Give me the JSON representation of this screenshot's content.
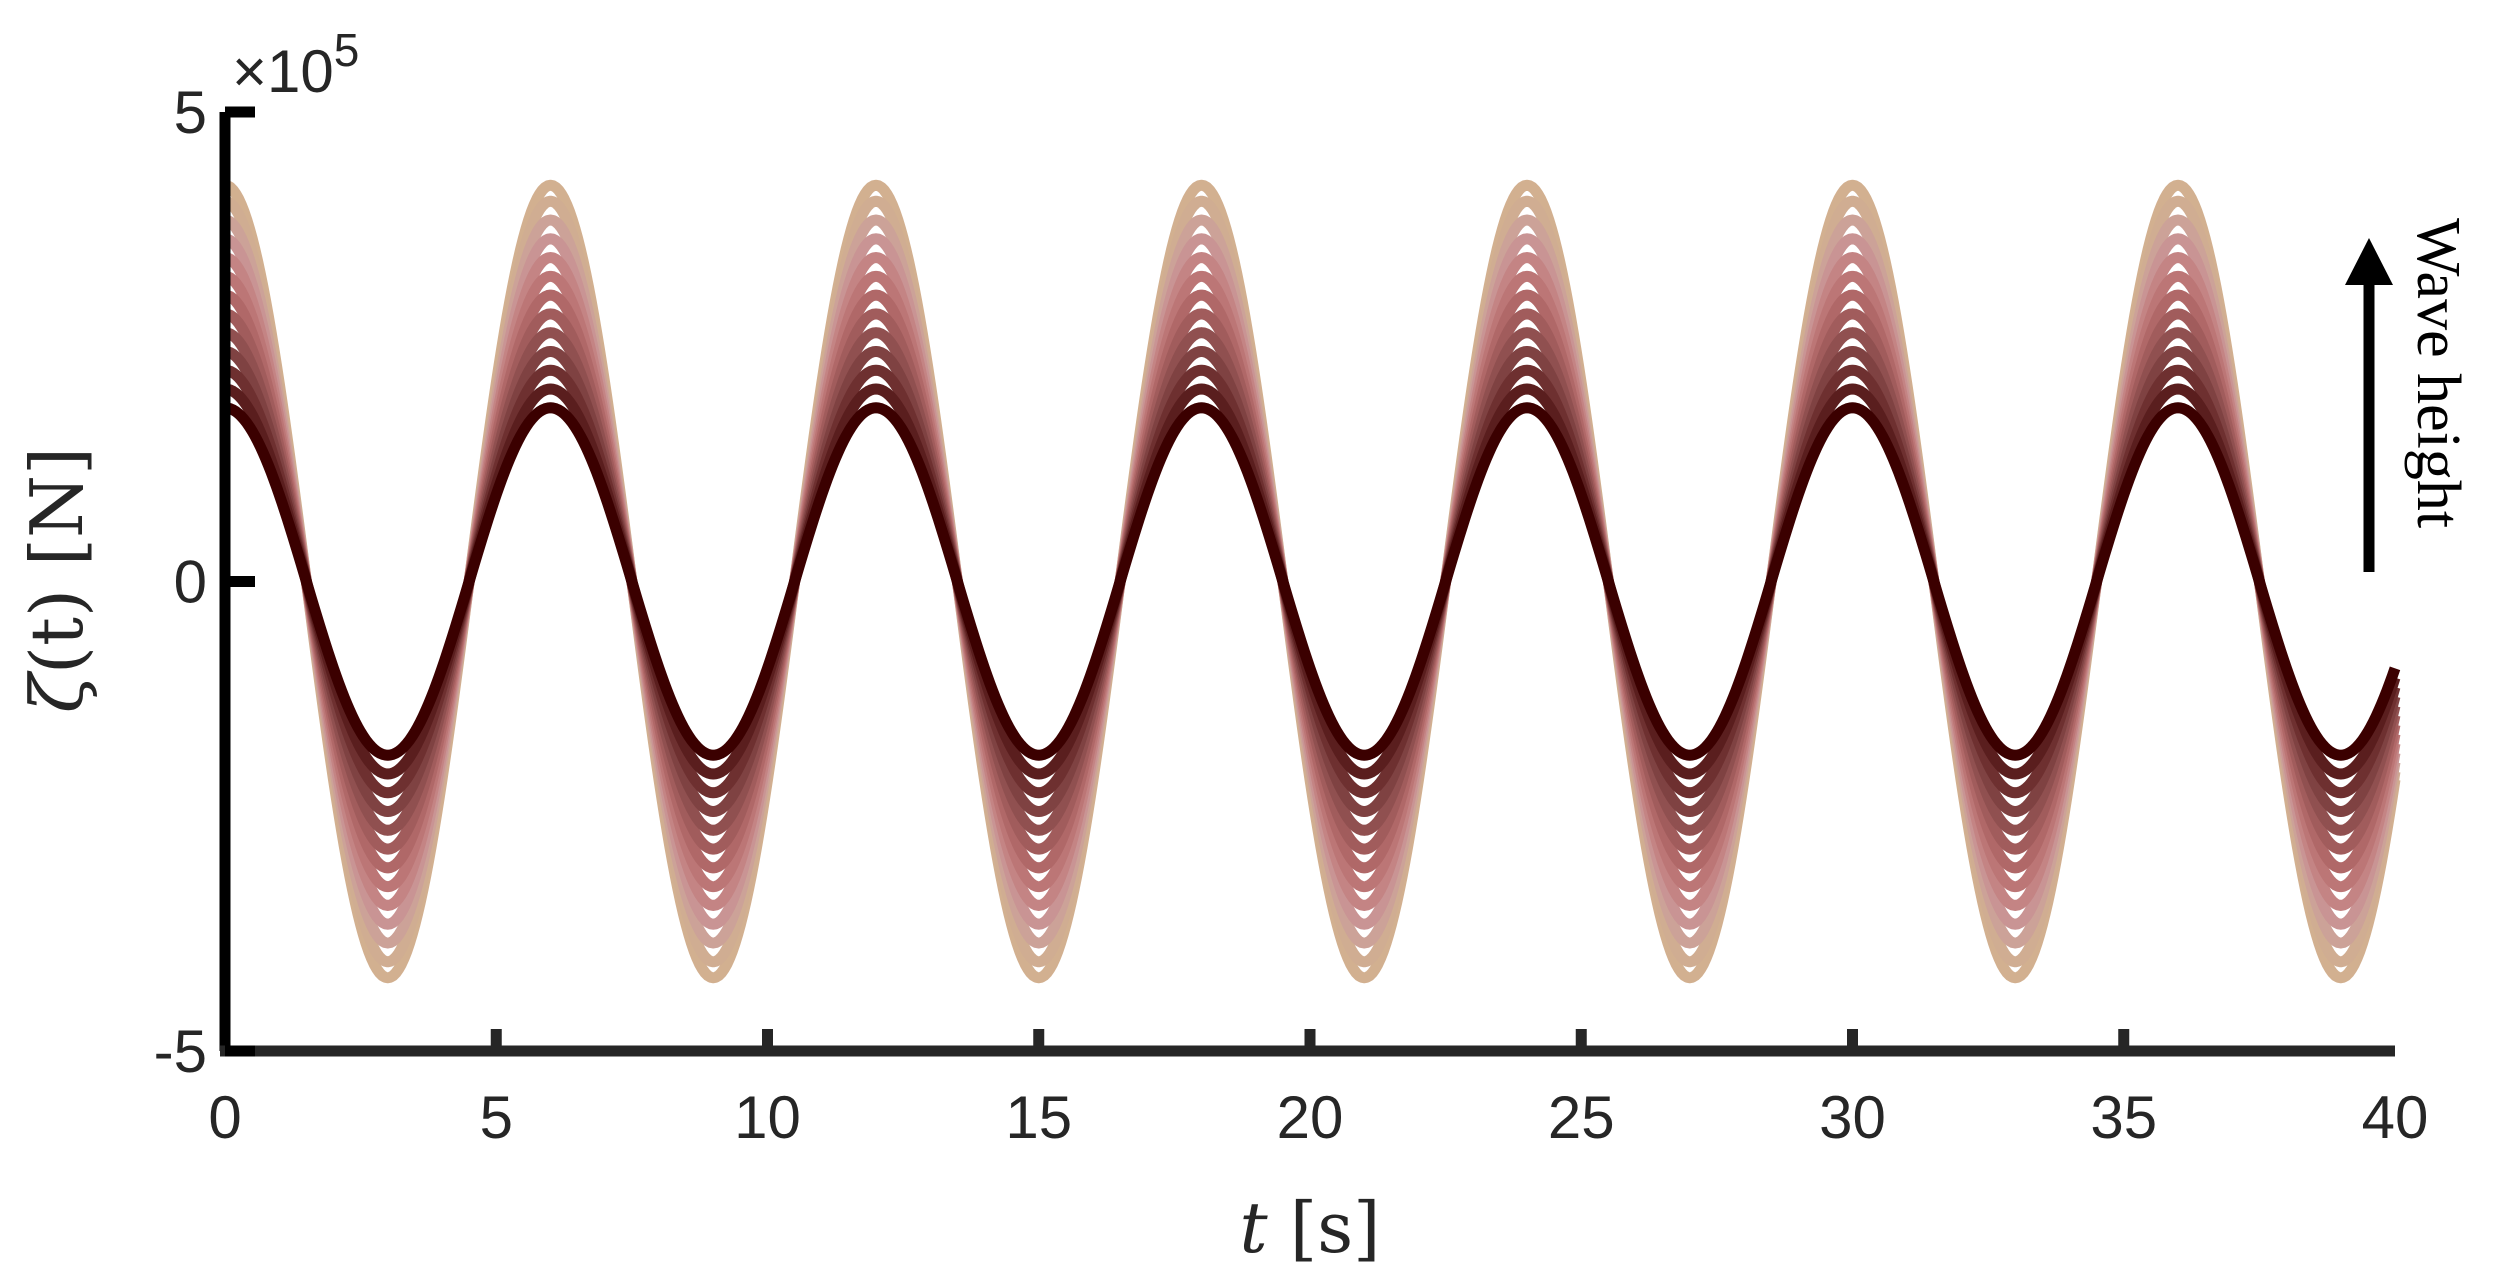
{
  "chart_data": {
    "type": "line",
    "xlabel": {
      "var": "t",
      "unit": "[s]"
    },
    "ylabel": {
      "var": "ζ",
      "arg": "(t)",
      "unit": "[N]"
    },
    "y_exponent": {
      "base": "×10",
      "power": "5"
    },
    "xlim": [
      0,
      40
    ],
    "ylim": [
      -5,
      5
    ],
    "y_scale_factor": 100000,
    "x_ticks": [
      "0",
      "5",
      "10",
      "15",
      "20",
      "25",
      "30",
      "35",
      "40"
    ],
    "y_ticks": [
      "-5",
      "0",
      "5"
    ],
    "grid": false,
    "legend": "none",
    "annotation": "Wave height",
    "period_s": 6,
    "waveform": "cosine",
    "series": [
      {
        "amplitude": 1.85,
        "color": "#3b0000"
      },
      {
        "amplitude": 2.05,
        "color": "#5a1e1e"
      },
      {
        "amplitude": 2.25,
        "color": "#6e3030"
      },
      {
        "amplitude": 2.45,
        "color": "#7f4242"
      },
      {
        "amplitude": 2.65,
        "color": "#905050"
      },
      {
        "amplitude": 2.85,
        "color": "#a15c5c"
      },
      {
        "amplitude": 3.05,
        "color": "#b06868"
      },
      {
        "amplitude": 3.25,
        "color": "#bc7676"
      },
      {
        "amplitude": 3.45,
        "color": "#c48484"
      },
      {
        "amplitude": 3.65,
        "color": "#c99494"
      },
      {
        "amplitude": 3.85,
        "color": "#cca298"
      },
      {
        "amplitude": 4.05,
        "color": "#d0ad92"
      },
      {
        "amplitude": 4.22,
        "color": "#d2b090"
      }
    ]
  }
}
